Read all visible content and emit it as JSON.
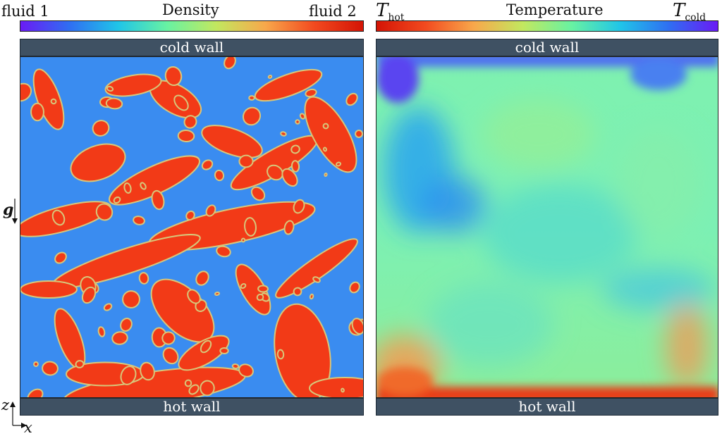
{
  "density": {
    "title": "Density",
    "left_label": "fluid 1",
    "right_label": "fluid 2",
    "colorbar": [
      "#6a1bf5",
      "#2f6ef2",
      "#20c5e8",
      "#68f2a2",
      "#c2e85f",
      "#f8a84b",
      "#f24a1f",
      "#d41405"
    ],
    "fluid1_color": "#3a8cf0",
    "fluid2_color": "#f23a17",
    "interface_color": "#d7c77a"
  },
  "temperature": {
    "title": "Temperature",
    "left_main": "T",
    "left_sub": "hot",
    "right_main": "T",
    "right_sub": "cold",
    "colorbar": [
      "#d41405",
      "#f24a1f",
      "#f8a84b",
      "#c2e85f",
      "#68f2a2",
      "#20c5e8",
      "#2f6ef2",
      "#6a1bf5"
    ]
  },
  "walls": {
    "top": "cold wall",
    "bottom": "hot wall",
    "color": "#3f5163"
  },
  "axes": {
    "gravity": "g",
    "z": "z",
    "x": "x"
  }
}
